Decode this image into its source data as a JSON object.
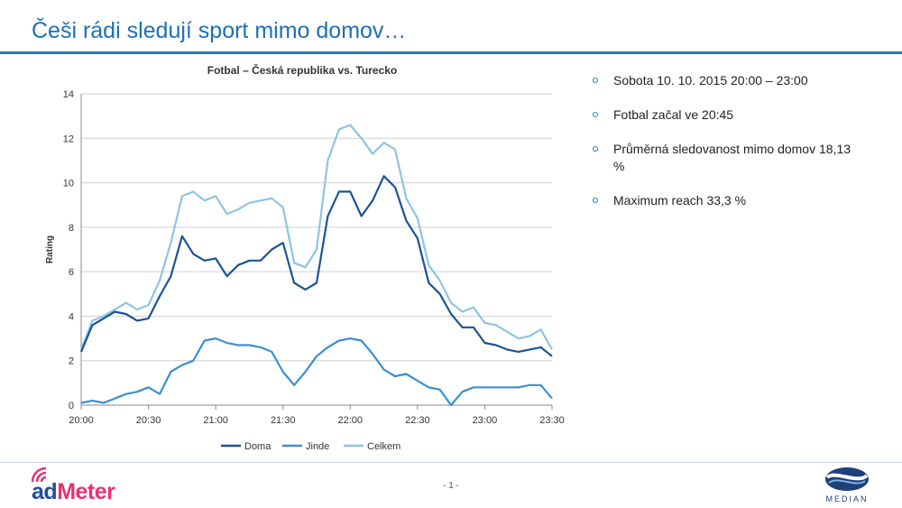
{
  "slide": {
    "title": "Češi rádi sledují sport mimo domov…",
    "page_number": "- 1 -"
  },
  "bullets": [
    "Sobota 10. 10. 2015 20:00 – 23:00",
    "Fotbal začal ve 20:45",
    "Průměrná sledovanost mimo domov 18,13 %",
    "Maximum reach 33,3 %"
  ],
  "logos": {
    "admeter_ad": "ad",
    "admeter_meter": "Meter",
    "median": "MEDIAN"
  },
  "colors": {
    "doma": "#1a5495",
    "jinde": "#3b8fd0",
    "celkem": "#8ec4e4",
    "title": "#1f6fb5"
  },
  "chart_data": {
    "type": "line",
    "title": "Fotbal – Česká republika vs. Turecko",
    "xlabel": "",
    "ylabel": "Rating",
    "ylim": [
      0,
      14
    ],
    "yticks": [
      "0",
      "2",
      "4",
      "6",
      "8",
      "10",
      "12",
      "14"
    ],
    "xticks": [
      "20:00",
      "20:30",
      "21:00",
      "21:30",
      "22:00",
      "22:30",
      "23:00",
      "23:30"
    ],
    "grid": true,
    "legend": "bottom",
    "x_minutes": [
      0,
      5,
      10,
      15,
      20,
      25,
      30,
      35,
      40,
      45,
      50,
      55,
      60,
      65,
      70,
      75,
      80,
      85,
      90,
      95,
      100,
      105,
      110,
      115,
      120,
      125,
      130,
      135,
      140,
      145,
      150,
      155,
      160,
      165,
      170,
      175,
      180,
      185,
      190,
      195,
      200,
      205,
      210
    ],
    "series": [
      {
        "name": "Doma",
        "values": [
          2.4,
          3.6,
          3.9,
          4.2,
          4.1,
          3.8,
          3.9,
          4.9,
          5.8,
          7.6,
          6.8,
          6.5,
          6.6,
          5.8,
          6.3,
          6.5,
          6.5,
          7.0,
          7.3,
          5.5,
          5.2,
          5.5,
          8.5,
          9.6,
          9.6,
          8.5,
          9.2,
          10.3,
          9.8,
          8.3,
          7.5,
          5.5,
          5.0,
          4.1,
          3.5,
          3.5,
          2.8,
          2.7,
          2.5,
          2.4,
          2.5,
          2.6,
          2.2
        ]
      },
      {
        "name": "Jinde",
        "values": [
          0.1,
          0.2,
          0.1,
          0.3,
          0.5,
          0.6,
          0.8,
          0.5,
          1.5,
          1.8,
          2.0,
          2.9,
          3.0,
          2.8,
          2.7,
          2.7,
          2.6,
          2.4,
          1.5,
          0.9,
          1.5,
          2.2,
          2.6,
          2.9,
          3.0,
          2.9,
          2.3,
          1.6,
          1.3,
          1.4,
          1.1,
          0.8,
          0.7,
          0.0,
          0.6,
          0.8,
          0.8,
          0.8,
          0.8,
          0.8,
          0.9,
          0.9,
          0.3
        ]
      },
      {
        "name": "Celkem",
        "values": [
          2.5,
          3.8,
          4.0,
          4.3,
          4.6,
          4.3,
          4.5,
          5.6,
          7.3,
          9.4,
          9.6,
          9.2,
          9.4,
          8.6,
          8.8,
          9.1,
          9.2,
          9.3,
          8.9,
          6.4,
          6.2,
          7.0,
          11.0,
          12.4,
          12.6,
          12.0,
          11.3,
          11.8,
          11.5,
          9.3,
          8.4,
          6.3,
          5.6,
          4.6,
          4.2,
          4.4,
          3.7,
          3.6,
          3.3,
          3.0,
          3.1,
          3.4,
          2.5
        ]
      }
    ]
  }
}
